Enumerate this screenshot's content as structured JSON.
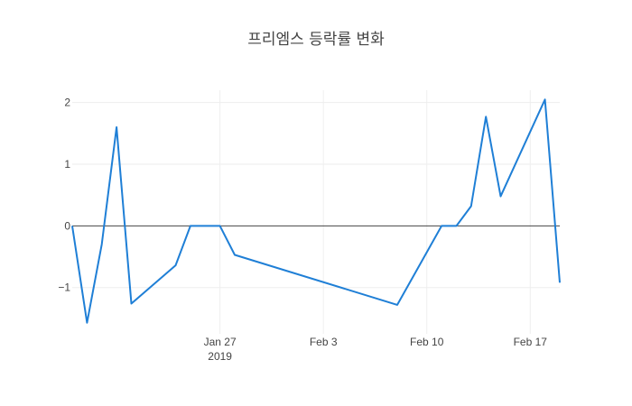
{
  "chart_data": {
    "type": "line",
    "title": "프리엠스 등락률 변화",
    "xlabel": "",
    "ylabel": "",
    "x_type": "date",
    "x_range": [
      "2019-01-17",
      "2019-02-19"
    ],
    "ylim": [
      -1.75,
      2.2
    ],
    "grid": true,
    "x_ticks": [
      {
        "value": "2019-01-27",
        "label": "Jan 27",
        "sublabel": "2019"
      },
      {
        "value": "2019-02-03",
        "label": "Feb 3"
      },
      {
        "value": "2019-02-10",
        "label": "Feb 10"
      },
      {
        "value": "2019-02-17",
        "label": "Feb 17"
      }
    ],
    "y_ticks": [
      {
        "value": 2,
        "label": "2"
      },
      {
        "value": 1,
        "label": "1"
      },
      {
        "value": 0,
        "label": "0"
      },
      {
        "value": -1,
        "label": "−1"
      }
    ],
    "series": [
      {
        "color": "#1f7fd6",
        "x": [
          "2019-01-17",
          "2019-01-18",
          "2019-01-19",
          "2019-01-20",
          "2019-01-21",
          "2019-01-24",
          "2019-01-25",
          "2019-01-27",
          "2019-01-28",
          "2019-02-08",
          "2019-02-11",
          "2019-02-12",
          "2019-02-13",
          "2019-02-14",
          "2019-02-15",
          "2019-02-18",
          "2019-02-19"
        ],
        "y": [
          0.0,
          -1.57,
          -0.3,
          1.6,
          -1.26,
          -0.64,
          0.0,
          0.0,
          -0.47,
          -1.28,
          0.0,
          0.0,
          0.32,
          1.77,
          0.48,
          2.05,
          -0.92
        ]
      }
    ]
  }
}
